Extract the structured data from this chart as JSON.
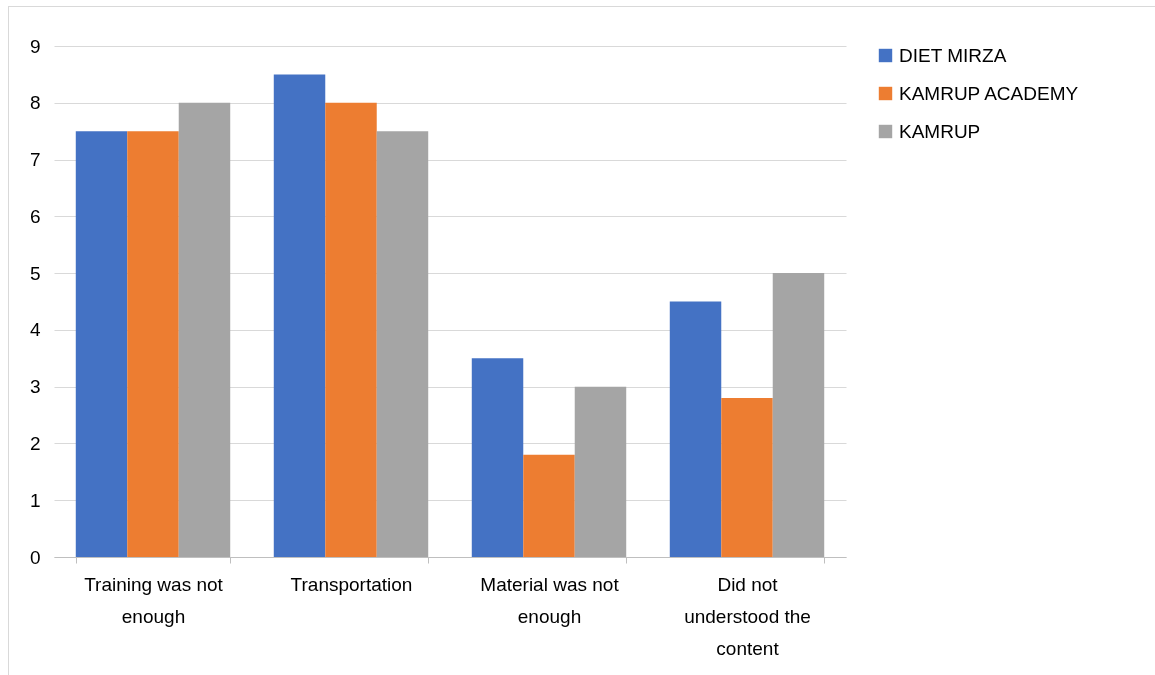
{
  "chart_data": {
    "type": "bar",
    "categories": [
      "Training was not enough",
      "Transportation",
      "Material was not enough",
      "Did not understood the content"
    ],
    "series": [
      {
        "name": "DIET MIRZA",
        "color": "#4472c4",
        "values": [
          7.5,
          8.5,
          3.5,
          4.5
        ]
      },
      {
        "name": "KAMRUP ACADEMY",
        "color": "#ed7d31",
        "values": [
          7.5,
          8,
          1.8,
          2.8
        ]
      },
      {
        "name": "KAMRUP",
        "color": "#a5a5a5",
        "values": [
          8,
          7.5,
          3,
          5
        ]
      }
    ],
    "ylim": [
      0,
      9
    ],
    "yticks": [
      0,
      1,
      2,
      3,
      4,
      5,
      6,
      7,
      8,
      9
    ],
    "grid": "y",
    "legend": "right"
  }
}
